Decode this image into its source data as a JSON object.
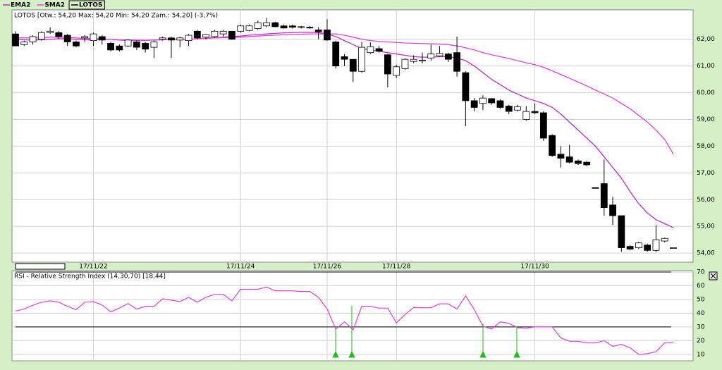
{
  "chart_data": [
    {
      "type": "candlestick",
      "name": "LOTOS",
      "header": "LOTOS [Otw.: 54,20  Max: 54,20  Min: 54,20  Zam.: 54,20] (-3,7%)",
      "categories": [
        null,
        null,
        null,
        null,
        null,
        null,
        null,
        null,
        null,
        "17/11/22",
        null,
        null,
        null,
        null,
        null,
        null,
        null,
        null,
        null,
        null,
        null,
        null,
        null,
        null,
        null,
        null,
        "17/11/24",
        null,
        null,
        null,
        null,
        null,
        null,
        null,
        null,
        null,
        "17/11/26",
        null,
        null,
        null,
        null,
        null,
        null,
        null,
        "17/11/28",
        null,
        null,
        null,
        null,
        null,
        null,
        null,
        null,
        null,
        null,
        null,
        null,
        null,
        null,
        null,
        "17/11/30",
        null,
        null,
        null,
        null,
        null,
        null,
        null,
        null,
        null,
        null,
        null,
        null,
        null,
        null,
        null,
        null
      ],
      "open": [
        62.2,
        61.8,
        61.9,
        62.0,
        62.25,
        62.25,
        62.15,
        61.9,
        62.05,
        61.95,
        62.1,
        61.85,
        61.75,
        61.75,
        61.9,
        61.85,
        61.7,
        62.0,
        62.05,
        61.97,
        61.95,
        62.3,
        62.08,
        62.1,
        62.2,
        62.3,
        62.3,
        62.33,
        62.4,
        62.5,
        62.62,
        62.5,
        62.5,
        62.45,
        62.45,
        62.35,
        62.35,
        61.9,
        61.35,
        61.25,
        60.8,
        61.5,
        61.65,
        61.42,
        60.65,
        60.9,
        61.17,
        61.2,
        61.3,
        61.38,
        61.45,
        61.5,
        60.75,
        59.7,
        59.6,
        59.78,
        59.7,
        59.5,
        59.35,
        59.0,
        59.3,
        59.25,
        58.4,
        57.7,
        57.6,
        57.45,
        57.4,
        56.45,
        56.6,
        55.8,
        55.4,
        54.25,
        54.2,
        54.3,
        54.1,
        54.45,
        54.2
      ],
      "high": [
        62.3,
        61.95,
        62.15,
        62.3,
        62.45,
        62.3,
        62.2,
        61.95,
        62.15,
        62.25,
        62.15,
        61.9,
        61.8,
        62.0,
        61.95,
        61.9,
        61.95,
        62.1,
        62.1,
        62.1,
        62.2,
        62.35,
        62.2,
        62.35,
        62.35,
        62.3,
        62.55,
        62.55,
        62.7,
        62.8,
        62.65,
        62.55,
        62.55,
        62.5,
        62.5,
        62.45,
        62.75,
        61.95,
        61.45,
        61.25,
        61.9,
        61.88,
        61.75,
        61.45,
        61.05,
        61.3,
        61.4,
        61.5,
        61.8,
        61.75,
        61.5,
        62.1,
        60.8,
        59.8,
        59.9,
        59.8,
        59.75,
        59.55,
        59.55,
        59.5,
        59.6,
        59.3,
        58.45,
        58.0,
        58.05,
        57.5,
        57.45,
        56.45,
        57.5,
        56.1,
        55.4,
        54.3,
        54.42,
        54.35,
        55.05,
        54.58,
        54.2
      ],
      "low": [
        61.75,
        61.75,
        61.8,
        61.95,
        62.2,
        62.0,
        61.75,
        61.7,
        61.9,
        61.75,
        61.8,
        61.55,
        61.55,
        61.7,
        61.6,
        61.5,
        61.3,
        61.95,
        61.3,
        61.7,
        61.75,
        62.0,
        62.0,
        62.05,
        62.1,
        61.98,
        62.25,
        62.3,
        62.35,
        62.45,
        62.45,
        62.4,
        62.4,
        62.4,
        62.4,
        62.0,
        61.95,
        60.9,
        61.0,
        60.4,
        60.75,
        61.45,
        61.5,
        60.2,
        60.55,
        60.85,
        61.1,
        61.1,
        61.2,
        61.35,
        61.15,
        60.6,
        58.75,
        59.3,
        59.35,
        59.55,
        59.4,
        59.2,
        59.3,
        58.95,
        59.2,
        58.2,
        57.6,
        57.2,
        57.35,
        57.3,
        57.25,
        56.42,
        55.4,
        55.05,
        54.05,
        54.1,
        54.15,
        54.05,
        54.05,
        54.4,
        54.2
      ],
      "close": [
        61.75,
        61.9,
        62.1,
        62.25,
        62.3,
        62.1,
        61.9,
        61.75,
        62.1,
        62.2,
        61.97,
        61.6,
        61.6,
        61.97,
        61.7,
        61.63,
        61.9,
        62.05,
        61.97,
        62.05,
        62.15,
        62.05,
        62.18,
        62.3,
        62.3,
        62.0,
        62.5,
        62.5,
        62.62,
        62.62,
        62.47,
        62.42,
        62.45,
        62.47,
        62.42,
        62.28,
        61.97,
        61.0,
        61.25,
        60.8,
        61.7,
        61.72,
        61.55,
        60.7,
        60.97,
        61.25,
        61.25,
        61.22,
        61.45,
        61.47,
        61.25,
        60.8,
        59.7,
        59.45,
        59.8,
        59.62,
        59.45,
        59.3,
        59.47,
        59.3,
        59.25,
        58.3,
        57.65,
        57.55,
        57.4,
        57.35,
        57.3,
        56.42,
        55.7,
        55.4,
        54.2,
        54.15,
        54.38,
        54.1,
        54.5,
        54.55,
        54.2
      ],
      "series": [
        {
          "name": "EMA2",
          "color": "#c02cc0",
          "values": [
            62.0,
            61.98,
            61.97,
            61.98,
            62.0,
            62.02,
            62.02,
            62.0,
            61.98,
            61.98,
            62.0,
            62.0,
            61.97,
            61.95,
            61.95,
            61.96,
            61.97,
            61.98,
            62.0,
            62.0,
            62.0,
            62.02,
            62.04,
            62.06,
            62.08,
            62.1,
            62.12,
            62.15,
            62.18,
            62.2,
            62.22,
            62.24,
            62.25,
            62.26,
            62.26,
            62.25,
            62.2,
            62.1,
            61.95,
            61.8,
            61.65,
            61.6,
            61.55,
            61.5,
            61.45,
            61.4,
            61.35,
            61.33,
            61.33,
            61.35,
            61.35,
            61.3,
            61.2,
            61.0,
            60.75,
            60.5,
            60.3,
            60.1,
            59.95,
            59.8,
            59.7,
            59.6,
            59.45,
            59.2,
            58.9,
            58.6,
            58.3,
            58.0,
            57.6,
            57.2,
            56.8,
            56.3,
            55.85,
            55.5,
            55.25,
            55.1,
            54.95
          ]
        },
        {
          "name": "SMA2",
          "color": "#e040e0",
          "values": [
            62.05,
            62.05,
            62.05,
            62.06,
            62.08,
            62.08,
            62.07,
            62.05,
            62.03,
            62.02,
            62.02,
            62.0,
            61.98,
            61.97,
            61.97,
            61.96,
            61.97,
            61.98,
            62.0,
            62.0,
            62.0,
            62.02,
            62.03,
            62.05,
            62.06,
            62.07,
            62.08,
            62.1,
            62.12,
            62.14,
            62.15,
            62.17,
            62.18,
            62.19,
            62.2,
            62.2,
            62.2,
            62.2,
            62.15,
            62.08,
            62.0,
            61.95,
            61.92,
            61.9,
            61.88,
            61.86,
            61.85,
            61.84,
            61.83,
            61.82,
            61.8,
            61.75,
            61.68,
            61.6,
            61.5,
            61.42,
            61.35,
            61.28,
            61.2,
            61.12,
            61.05,
            60.95,
            60.82,
            60.68,
            60.54,
            60.4,
            60.25,
            60.1,
            59.95,
            59.8,
            59.6,
            59.4,
            59.15,
            58.9,
            58.6,
            58.25,
            57.7
          ]
        }
      ],
      "ylim": [
        53.66,
        63.1
      ],
      "yticks": [
        {
          "value": 54,
          "label": "54,00"
        },
        {
          "value": 55,
          "label": "55,00"
        },
        {
          "value": 56,
          "label": "56,00"
        },
        {
          "value": 57,
          "label": "57,00"
        },
        {
          "value": 58,
          "label": "58,00"
        },
        {
          "value": 59,
          "label": "59,00"
        },
        {
          "value": 60,
          "label": "60,00"
        },
        {
          "value": 61,
          "label": "61,00"
        },
        {
          "value": 62,
          "label": "62,00"
        }
      ],
      "grid": true
    },
    {
      "type": "line",
      "title": "RSI - Relative Strength Index (14,30,70) [18,44]",
      "color": "#e040e0",
      "values": [
        41.6,
        43,
        45.8,
        48,
        49,
        48,
        45,
        42.6,
        48,
        48.4,
        46,
        41,
        43.7,
        47,
        43,
        45,
        45,
        50.5,
        49.5,
        48.4,
        51.6,
        48,
        51.6,
        53.7,
        53.7,
        49,
        57.4,
        57.4,
        57.4,
        59,
        56.3,
        56.3,
        56.3,
        55.8,
        55.8,
        51.6,
        43,
        28.4,
        33.7,
        28,
        45,
        45,
        43.7,
        43.7,
        33,
        39,
        44.2,
        44,
        44,
        46.8,
        46.8,
        43,
        52.6,
        42.6,
        30.5,
        28.4,
        33.7,
        32.6,
        29.5,
        29,
        30,
        30,
        30,
        22,
        19.5,
        19.5,
        18.4,
        18.4,
        20,
        15.8,
        17.4,
        14.7,
        10,
        10.5,
        12,
        18.4,
        18.44
      ],
      "ylim": [
        5.3,
        71
      ],
      "yticks": [
        10,
        20,
        30,
        40,
        50,
        60,
        70
      ],
      "hlines": [
        30,
        70
      ],
      "grid": true
    }
  ]
}
